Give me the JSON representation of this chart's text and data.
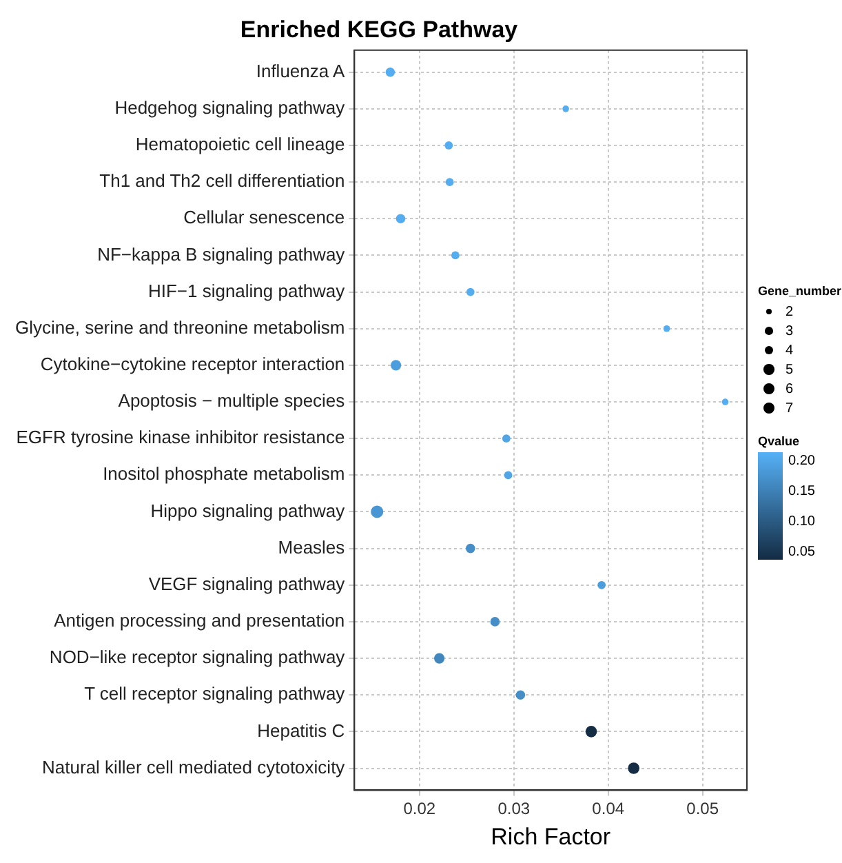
{
  "chart_data": {
    "type": "bubble",
    "title": "Enriched KEGG Pathway",
    "xlabel": "Rich Factor",
    "legend_title": "Gene_number",
    "clabel": "Qvalue",
    "categories": [
      "Influenza A",
      "Hedgehog signaling pathway",
      "Hematopoietic cell lineage",
      "Th1 and Th2 cell differentiation",
      "Cellular senescence",
      "NF−kappa B signaling pathway",
      "HIF−1 signaling pathway",
      "Glycine, serine and threonine metabolism",
      "Cytokine−cytokine receptor interaction",
      "Apoptosis − multiple species",
      "EGFR tyrosine kinase inhibitor resistance",
      "Inositol phosphate metabolism",
      "Hippo signaling pathway",
      "Measles",
      "VEGF signaling pathway",
      "Antigen processing and presentation",
      "NOD−like receptor signaling pathway",
      "T cell receptor signaling pathway",
      "Hepatitis C",
      "Natural killer cell mediated cytotoxicity"
    ],
    "values": [
      0.0169,
      0.0355,
      0.0231,
      0.0232,
      0.018,
      0.0238,
      0.0254,
      0.0462,
      0.0175,
      0.0524,
      0.0292,
      0.0294,
      0.0155,
      0.0254,
      0.0393,
      0.028,
      0.0221,
      0.0307,
      0.0382,
      0.0427
    ],
    "sizes": [
      4,
      2,
      3,
      3,
      4,
      3,
      3,
      2,
      5,
      2,
      3,
      3,
      7,
      4,
      3,
      4,
      5,
      4,
      6,
      6
    ],
    "cvalues": [
      0.21,
      0.21,
      0.21,
      0.21,
      0.21,
      0.21,
      0.21,
      0.21,
      0.19,
      0.21,
      0.2,
      0.2,
      0.18,
      0.17,
      0.19,
      0.17,
      0.16,
      0.17,
      0.04,
      0.04
    ],
    "size_legend": [
      2,
      3,
      4,
      5,
      6,
      7
    ],
    "clim": [
      0.038,
      0.216
    ],
    "cticks": [
      {
        "value": 0.05,
        "label": "0.05"
      },
      {
        "value": 0.1,
        "label": "0.10"
      },
      {
        "value": 0.15,
        "label": "0.15"
      },
      {
        "value": 0.2,
        "label": "0.20"
      }
    ],
    "orientation": "horizontal",
    "xlim": [
      0.0131,
      0.0547
    ],
    "xticks": [
      0.02,
      0.03,
      0.04,
      0.05
    ],
    "grid": true
  }
}
